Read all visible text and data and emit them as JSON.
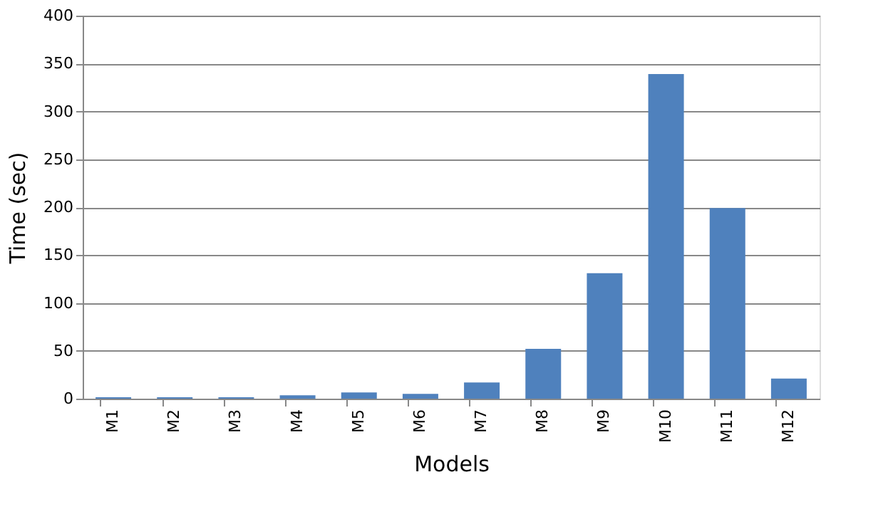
{
  "chart_data": {
    "type": "bar",
    "xlabel": "Models",
    "ylabel": "Time (sec)",
    "categories": [
      "M1",
      "M2",
      "M3",
      "M4",
      "M5",
      "M6",
      "M7",
      "M8",
      "M9",
      "M10",
      "M11",
      "M12"
    ],
    "values": [
      1.5,
      1.5,
      1.5,
      3.5,
      6.5,
      5,
      17,
      52,
      131,
      339,
      199,
      21
    ],
    "color": "#4f81bd",
    "ylim": [
      0,
      400
    ],
    "yticks": [
      0,
      50,
      100,
      150,
      200,
      250,
      300,
      350,
      400
    ],
    "grid": "y",
    "legend": false
  }
}
